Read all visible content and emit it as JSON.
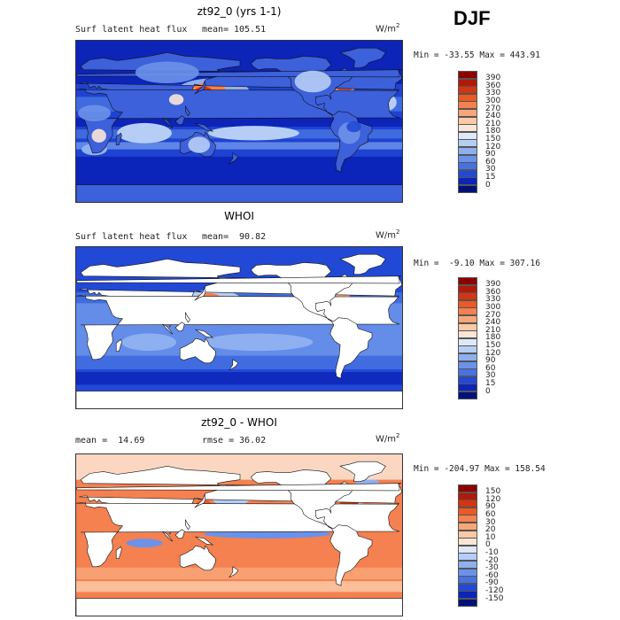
{
  "season": "DJF",
  "panels": [
    {
      "title": "zt92_0 (yrs 1-1)",
      "left_label": "Surf latent heat flux",
      "mean_label": "mean=",
      "mean_value": "105.51",
      "units": "W/m",
      "units_exp": "2",
      "minmax": "Min = -33.55 Max = 443.91",
      "field": "model"
    },
    {
      "title": "WHOI",
      "left_label": "Surf latent heat flux",
      "mean_label": "mean=",
      "mean_value": " 90.82",
      "units": "W/m",
      "units_exp": "2",
      "minmax": "Min =  -9.10 Max = 307.16",
      "field": "obs"
    },
    {
      "title": "zt92_0 - WHOI",
      "left_label": "mean =  14.69",
      "mean_label": "rmse =",
      "mean_value": " 36.02",
      "units": "W/m",
      "units_exp": "2",
      "minmax": "Min = -204.97 Max = 158.54",
      "field": "diff"
    }
  ],
  "colorbar_abs": {
    "labels": [
      "390",
      "360",
      "330",
      "300",
      "270",
      "240",
      "210",
      "180",
      "150",
      "120",
      "90",
      "60",
      "30",
      "15",
      "0"
    ],
    "colors": [
      "#8c0000",
      "#b01a0a",
      "#d43412",
      "#ea5a24",
      "#f58050",
      "#f8a678",
      "#fbc9a6",
      "#fbe6d6",
      "#dde9fb",
      "#b6cef6",
      "#8eb0f0",
      "#6b92ea",
      "#4672e2",
      "#2249d6",
      "#0c24b8",
      "#00117a"
    ]
  },
  "colorbar_diff": {
    "labels": [
      "150",
      "120",
      "90",
      "60",
      "30",
      "20",
      "10",
      "0",
      "-10",
      "-20",
      "-30",
      "-60",
      "-90",
      "-120",
      "-150"
    ],
    "colors": [
      "#8c0000",
      "#b01a0a",
      "#d43412",
      "#ea5a24",
      "#f58050",
      "#f8a678",
      "#fbc9a6",
      "#fbe6d6",
      "#dde9fb",
      "#b6cef6",
      "#8eb0f0",
      "#6b92ea",
      "#4672e2",
      "#2249d6",
      "#0c24b8",
      "#00117a"
    ]
  }
}
